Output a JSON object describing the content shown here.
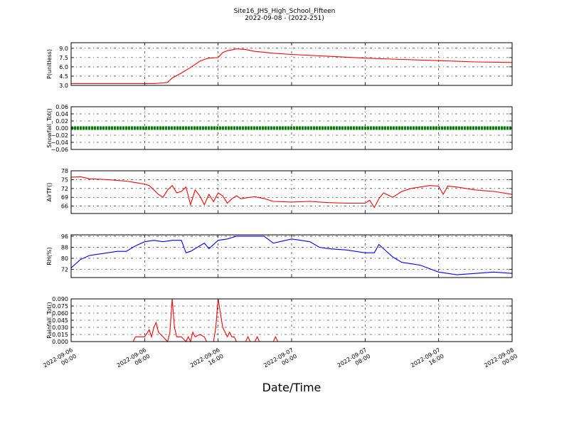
{
  "figure": {
    "title": "Site16_JHS_High_School_Fifteen",
    "subtitle": "2022-09-08 - (2022-251)",
    "xlabel": "Date/Time"
  },
  "chart_data": [
    {
      "type": "line",
      "ylabel": "P(unitless)",
      "color": "#ff0000",
      "ylim": [
        3.0,
        9.9
      ],
      "yticks": [
        "3.0",
        "4.5",
        "6.0",
        "7.5",
        "9.0"
      ],
      "ytick_values": [
        3.0,
        4.5,
        6.0,
        7.5,
        9.0
      ],
      "grid": true,
      "series": [
        {
          "x": [
            "2022-09-06 00:00",
            "2022-09-06 02:00",
            "2022-09-06 04:00",
            "2022-09-06 06:00",
            "2022-09-06 08:00",
            "2022-09-06 09:00",
            "2022-09-06 10:00",
            "2022-09-06 10:30",
            "2022-09-06 11:00",
            "2022-09-06 12:00",
            "2022-09-06 13:00",
            "2022-09-06 14:00",
            "2022-09-06 14:30",
            "2022-09-06 15:00",
            "2022-09-06 16:00",
            "2022-09-06 16:30",
            "2022-09-06 17:00",
            "2022-09-06 18:00",
            "2022-09-06 19:00",
            "2022-09-06 20:00",
            "2022-09-06 22:00",
            "2022-09-07 00:00",
            "2022-09-07 04:00",
            "2022-09-07 08:00",
            "2022-09-07 12:00",
            "2022-09-07 16:00",
            "2022-09-07 20:00",
            "2022-09-08 00:00"
          ],
          "y": [
            3.3,
            3.3,
            3.3,
            3.3,
            3.3,
            3.3,
            3.4,
            3.5,
            4.2,
            5.0,
            5.9,
            6.9,
            7.2,
            7.4,
            7.5,
            8.3,
            8.6,
            8.9,
            8.8,
            8.5,
            8.2,
            8.0,
            7.7,
            7.4,
            7.2,
            7.0,
            6.8,
            6.7
          ]
        }
      ]
    },
    {
      "type": "line",
      "ylabel": "Snowfall_Tot()",
      "color": "#008000",
      "ylim": [
        -0.06,
        0.06
      ],
      "yticks": [
        "−0.06",
        "−0.04",
        "−0.02",
        "0.00",
        "0.02",
        "0.04",
        "0.06"
      ],
      "ytick_values": [
        -0.06,
        -0.04,
        -0.02,
        0.0,
        0.02,
        0.04,
        0.06
      ],
      "grid": true,
      "series": [
        {
          "x": [
            "2022-09-06 00:00",
            "2022-09-08 00:00"
          ],
          "y": [
            0.0,
            0.0
          ]
        }
      ]
    },
    {
      "type": "line",
      "ylabel": "AirTF()",
      "color": "#ff0000",
      "ylim": [
        63.5,
        78
      ],
      "yticks": [
        "66",
        "69",
        "72",
        "75",
        "78"
      ],
      "ytick_values": [
        66,
        69,
        72,
        75,
        78
      ],
      "grid": true,
      "series": [
        {
          "x": [
            "2022-09-06 00:00",
            "2022-09-06 01:00",
            "2022-09-06 02:00",
            "2022-09-06 04:00",
            "2022-09-06 06:00",
            "2022-09-06 07:00",
            "2022-09-06 08:00",
            "2022-09-06 08:30",
            "2022-09-06 09:00",
            "2022-09-06 09:30",
            "2022-09-06 10:00",
            "2022-09-06 10:30",
            "2022-09-06 11:00",
            "2022-09-06 11:30",
            "2022-09-06 12:00",
            "2022-09-06 12:30",
            "2022-09-06 13:00",
            "2022-09-06 13:30",
            "2022-09-06 14:00",
            "2022-09-06 14:30",
            "2022-09-06 15:00",
            "2022-09-06 15:30",
            "2022-09-06 16:00",
            "2022-09-06 16:30",
            "2022-09-06 17:00",
            "2022-09-06 17:30",
            "2022-09-06 18:00",
            "2022-09-06 18:30",
            "2022-09-06 19:00",
            "2022-09-06 20:00",
            "2022-09-06 21:00",
            "2022-09-06 22:00",
            "2022-09-07 00:00",
            "2022-09-07 02:00",
            "2022-09-07 04:00",
            "2022-09-07 06:00",
            "2022-09-07 07:00",
            "2022-09-07 08:00",
            "2022-09-07 08:30",
            "2022-09-07 09:00",
            "2022-09-07 09:30",
            "2022-09-07 10:00",
            "2022-09-07 11:00",
            "2022-09-07 12:00",
            "2022-09-07 13:00",
            "2022-09-07 14:00",
            "2022-09-07 15:00",
            "2022-09-07 16:00",
            "2022-09-07 16:30",
            "2022-09-07 17:00",
            "2022-09-07 18:00",
            "2022-09-07 20:00",
            "2022-09-07 22:00",
            "2022-09-08 00:00"
          ],
          "y": [
            75.8,
            76.0,
            75.3,
            75.0,
            74.5,
            74.0,
            73.5,
            73.0,
            71.5,
            70.0,
            69.0,
            71.5,
            73.0,
            70.5,
            71.0,
            72.5,
            66.5,
            71.5,
            69.5,
            66.5,
            70.0,
            67.5,
            70.5,
            69.5,
            67.0,
            68.5,
            69.5,
            68.5,
            68.8,
            69.2,
            68.6,
            67.6,
            67.4,
            67.6,
            67.2,
            67.0,
            67.0,
            67.0,
            68.0,
            65.5,
            68.5,
            70.5,
            69.0,
            71.0,
            72.0,
            72.5,
            73.0,
            72.8,
            70.0,
            72.8,
            72.5,
            71.5,
            71.0,
            70.0
          ]
        }
      ]
    },
    {
      "type": "line",
      "ylabel": "RH(%)",
      "color": "#0000ff",
      "ylim": [
        66,
        97
      ],
      "yticks": [
        "72",
        "80",
        "88",
        "96"
      ],
      "ytick_values": [
        72,
        80,
        88,
        96
      ],
      "grid": true,
      "series": [
        {
          "x": [
            "2022-09-06 00:00",
            "2022-09-06 01:00",
            "2022-09-06 02:00",
            "2022-09-06 03:00",
            "2022-09-06 04:00",
            "2022-09-06 05:00",
            "2022-09-06 06:00",
            "2022-09-06 07:00",
            "2022-09-06 08:00",
            "2022-09-06 09:00",
            "2022-09-06 10:00",
            "2022-09-06 11:00",
            "2022-09-06 12:00",
            "2022-09-06 12:30",
            "2022-09-06 13:00",
            "2022-09-06 14:00",
            "2022-09-06 14:30",
            "2022-09-06 15:00",
            "2022-09-06 16:00",
            "2022-09-06 17:00",
            "2022-09-06 18:00",
            "2022-09-06 20:00",
            "2022-09-06 21:00",
            "2022-09-06 22:00",
            "2022-09-07 00:00",
            "2022-09-07 01:00",
            "2022-09-07 02:00",
            "2022-09-07 03:00",
            "2022-09-07 04:00",
            "2022-09-07 06:00",
            "2022-09-07 08:00",
            "2022-09-07 09:00",
            "2022-09-07 09:30",
            "2022-09-07 10:00",
            "2022-09-07 11:00",
            "2022-09-07 12:00",
            "2022-09-07 13:00",
            "2022-09-07 14:00",
            "2022-09-07 16:00",
            "2022-09-07 17:00",
            "2022-09-07 18:00",
            "2022-09-07 20:00",
            "2022-09-07 22:00",
            "2022-09-08 00:00"
          ],
          "y": [
            73,
            79,
            82,
            83,
            84,
            85,
            85,
            89,
            92,
            93,
            92,
            93,
            93,
            84,
            85,
            89,
            91,
            87,
            93,
            94,
            96,
            96,
            96,
            91,
            94,
            93,
            92,
            88,
            87,
            86,
            84,
            84,
            90,
            87,
            81,
            77,
            76,
            75,
            70,
            69,
            68,
            69,
            70,
            69
          ]
        }
      ]
    },
    {
      "type": "line",
      "ylabel": "Rainfall_Tot()",
      "color": "#ff0000",
      "ylim": [
        0.0,
        0.09
      ],
      "yticks": [
        "0.000",
        "0.015",
        "0.030",
        "0.045",
        "0.060",
        "0.075",
        "0.090"
      ],
      "ytick_values": [
        0.0,
        0.015,
        0.03,
        0.045,
        0.06,
        0.075,
        0.09
      ],
      "grid": true,
      "series": [
        {
          "x": [
            "2022-09-06 00:00",
            "2022-09-06 06:45",
            "2022-09-06 07:00",
            "2022-09-06 08:00",
            "2022-09-06 08:30",
            "2022-09-06 08:45",
            "2022-09-06 09:00",
            "2022-09-06 09:15",
            "2022-09-06 09:30",
            "2022-09-06 10:00",
            "2022-09-06 10:30",
            "2022-09-06 10:45",
            "2022-09-06 11:00",
            "2022-09-06 11:15",
            "2022-09-06 11:30",
            "2022-09-06 12:00",
            "2022-09-06 12:30",
            "2022-09-06 12:45",
            "2022-09-06 13:00",
            "2022-09-06 13:15",
            "2022-09-06 13:30",
            "2022-09-06 14:00",
            "2022-09-06 14:30",
            "2022-09-06 14:45",
            "2022-09-06 15:00",
            "2022-09-06 15:30",
            "2022-09-06 15:45",
            "2022-09-06 16:00",
            "2022-09-06 16:30",
            "2022-09-06 17:00",
            "2022-09-06 17:15",
            "2022-09-06 17:30",
            "2022-09-06 17:45",
            "2022-09-06 18:00",
            "2022-09-06 19:00",
            "2022-09-06 19:15",
            "2022-09-06 19:30",
            "2022-09-06 20:00",
            "2022-09-06 20:15",
            "2022-09-06 20:30",
            "2022-09-06 22:00",
            "2022-09-06 22:15",
            "2022-09-06 22:30",
            "2022-09-08 00:00"
          ],
          "y": [
            0.0,
            0.0,
            0.01,
            0.01,
            0.025,
            0.01,
            0.03,
            0.04,
            0.02,
            0.01,
            0.0,
            0.02,
            0.09,
            0.03,
            0.01,
            0.01,
            0.0,
            0.01,
            0.0,
            0.02,
            0.01,
            0.015,
            0.01,
            0.0,
            0.0,
            0.0,
            0.03,
            0.09,
            0.03,
            0.01,
            0.02,
            0.01,
            0.01,
            0.0,
            0.0,
            0.01,
            0.0,
            0.0,
            0.01,
            0.0,
            0.0,
            0.01,
            0.0,
            0.0
          ]
        }
      ]
    }
  ],
  "x_axis": {
    "range": [
      "2022-09-06 00:00",
      "2022-09-08 00:00"
    ],
    "ticks": [
      {
        "value": "2022-09-06 00:00",
        "date": "2022-09-06",
        "time": "00:00"
      },
      {
        "value": "2022-09-06 08:00",
        "date": "2022-09-06",
        "time": "08:00"
      },
      {
        "value": "2022-09-06 16:00",
        "date": "2022-09-06",
        "time": "16:00"
      },
      {
        "value": "2022-09-07 00:00",
        "date": "2022-09-07",
        "time": "00:00"
      },
      {
        "value": "2022-09-07 08:00",
        "date": "2022-09-07",
        "time": "08:00"
      },
      {
        "value": "2022-09-07 16:00",
        "date": "2022-09-07",
        "time": "16:00"
      },
      {
        "value": "2022-09-08 00:00",
        "date": "2022-09-08",
        "time": "00:00"
      }
    ]
  }
}
